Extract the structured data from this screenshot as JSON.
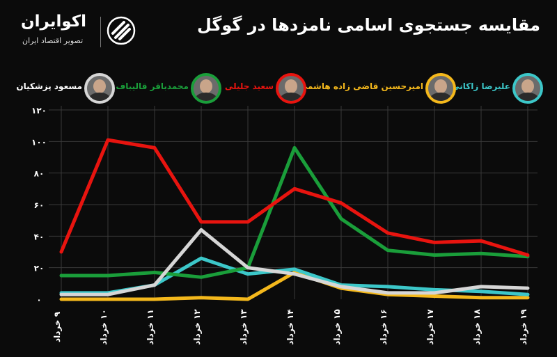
{
  "header": {
    "title": "مقایسه جستجوی اسامی نامزدها در گوگل",
    "brand_name": "اکوایران",
    "brand_tagline": "تصویر اقتصاد ایران"
  },
  "colors": {
    "background": "#0b0b0b",
    "grid": "#3a3a3a"
  },
  "chart_data": {
    "type": "line",
    "title": "مقایسه جستجوی اسامی نامزدها در گوگل",
    "xlabel": "",
    "ylabel": "",
    "ylim": [
      0,
      120
    ],
    "yticks": [
      0,
      20,
      40,
      60,
      80,
      100,
      120
    ],
    "ytick_labels": [
      "۰",
      "۲۰",
      "۴۰",
      "۶۰",
      "۸۰",
      "۱۰۰",
      "۱۲۰"
    ],
    "categories": [
      "۹ خرداد",
      "۱۰ خرداد",
      "۱۱ خرداد",
      "۱۲ خرداد",
      "۱۳ خرداد",
      "۱۴ خرداد",
      "۱۵ خرداد",
      "۱۶ خرداد",
      "۱۷ خرداد",
      "۱۸ خرداد",
      "۱۹ خرداد"
    ],
    "grid": true,
    "legend_position": "top",
    "series": [
      {
        "name": "سعید جلیلی",
        "color": "#e8140f",
        "values": [
          30,
          101,
          96,
          49,
          49,
          70,
          61,
          42,
          36,
          37,
          28
        ]
      },
      {
        "name": "محمدباقر قالیباف",
        "color": "#1a9e3a",
        "values": [
          15,
          15,
          17,
          14,
          20,
          96,
          51,
          31,
          28,
          29,
          27
        ]
      },
      {
        "name": "مسعود پزشکیان",
        "color": "#d6d6d6",
        "values": [
          3,
          3,
          9,
          44,
          20,
          16,
          8,
          4,
          4,
          8,
          7
        ]
      },
      {
        "name": "علیرضا زاکانی",
        "color": "#3cc7c9",
        "values": [
          4,
          4,
          9,
          26,
          16,
          19,
          9,
          8,
          6,
          5,
          3
        ]
      },
      {
        "name": "امیرحسین قاضی زاده هاشمی",
        "color": "#f4b81c",
        "values": [
          0,
          0,
          0,
          1,
          0,
          17,
          7,
          3,
          2,
          1,
          1
        ]
      }
    ]
  },
  "legend": [
    {
      "name": "علیرضا زاکانی",
      "color": "#3cc7c9",
      "avatar_icon": "avatar-zakani-icon"
    },
    {
      "name": "امیرحسین قاضی زاده هاشمی",
      "color": "#f4b81c",
      "avatar_icon": "avatar-ghazizadeh-icon"
    },
    {
      "name": "سعید جلیلی",
      "color": "#e8140f",
      "avatar_icon": "avatar-jalili-icon"
    },
    {
      "name": "محمدباقر قالیباف",
      "color": "#1a9e3a",
      "avatar_icon": "avatar-ghalibaf-icon"
    },
    {
      "name": "مسعود پزشکیان",
      "color": "#d6d6d6",
      "avatar_icon": "avatar-pezeshkian-icon"
    }
  ]
}
